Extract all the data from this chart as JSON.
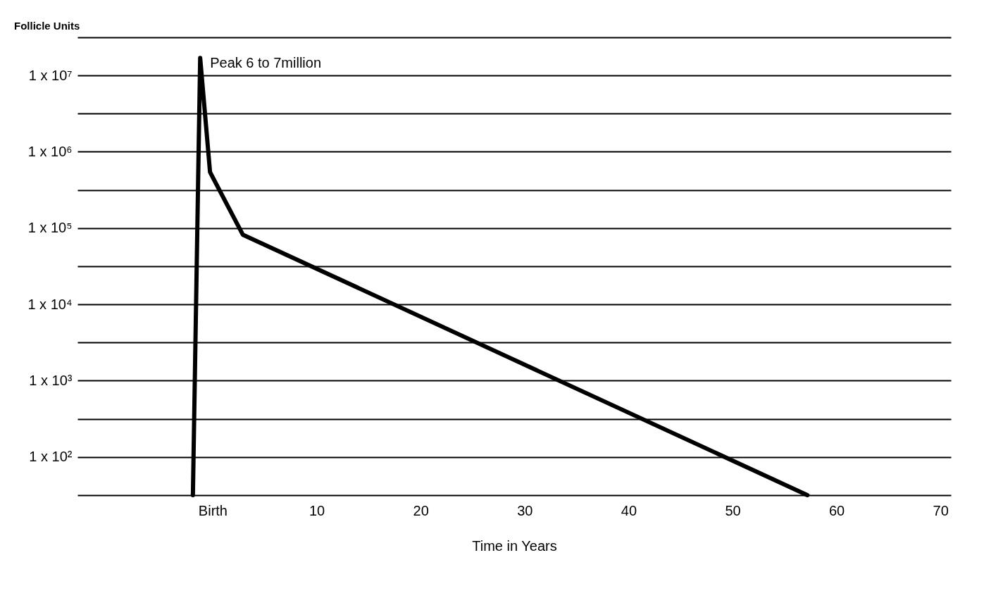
{
  "chart_data": {
    "type": "line",
    "ylabel": "Follicle Units",
    "xlabel": "Time in Years",
    "x": [
      -1.9,
      -1.2,
      -0.25,
      2.9,
      57.2
    ],
    "series": [
      {
        "color": "#000000",
        "values": [
          31.6,
          17000000,
          540000,
          82000,
          31.6
        ]
      }
    ],
    "log": "y",
    "xlim": [
      -13,
      71
    ],
    "xticks": [
      {
        "value": 0,
        "label": "Birth"
      },
      10,
      20,
      30,
      40,
      50,
      60,
      70
    ],
    "ylim": [
      31.6,
      31622777
    ],
    "yticks": [
      {
        "value": 31.6,
        "label": null
      },
      {
        "value": 100,
        "label": "1 x 10²"
      },
      {
        "value": 316,
        "label": null
      },
      {
        "value": 1000,
        "label": "1 x 10³"
      },
      {
        "value": 3162,
        "label": null
      },
      {
        "value": 10000,
        "label": "1 x 10⁴"
      },
      {
        "value": 31623,
        "label": null
      },
      {
        "value": 100000,
        "label": "1 x 10⁵"
      },
      {
        "value": 316228,
        "label": null
      },
      {
        "value": 1000000,
        "label": "1 x 10⁶"
      },
      {
        "value": 3162278,
        "label": null
      },
      {
        "value": 10000000,
        "label": "1 x 10⁷"
      },
      {
        "value": 31622777,
        "label": null
      }
    ],
    "grid": "y",
    "marker": "none",
    "line_style": "solid",
    "annotations": [
      {
        "text": "Peak 6 to 7million",
        "x": -1.2,
        "y": 17000000
      }
    ]
  }
}
